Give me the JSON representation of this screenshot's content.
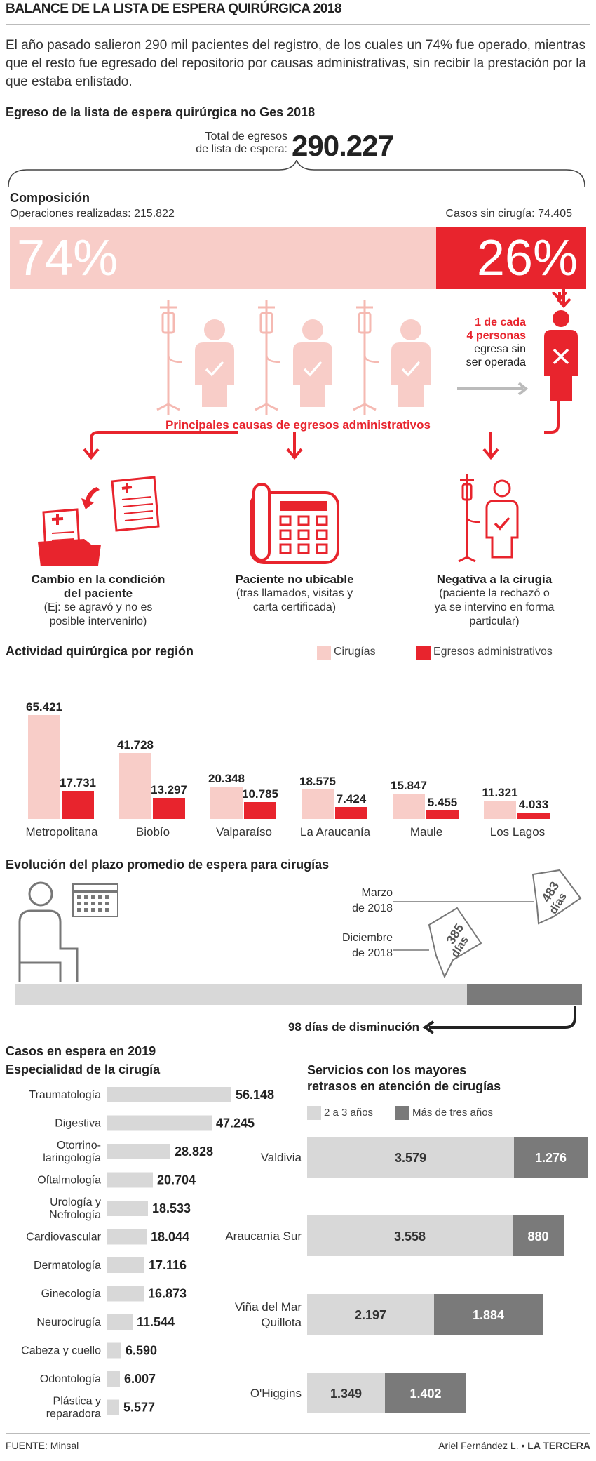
{
  "header": {
    "title": "BALANCE DE LA LISTA DE ESPERA QUIRÚRGICA 2018",
    "intro": "El año pasado salieron 290 mil pacientes del registro, de los cuales un 74% fue operado, mientras que el resto fue egresado del repositorio por causas administrativas, sin recibir la prestación por la que estaba enlistado."
  },
  "egreso": {
    "title": "Egreso de la lista de espera quirúrgica no Ges 2018",
    "total_label_1": "Total de egresos",
    "total_label_2": "de lista de espera:",
    "total_value": "290.227"
  },
  "composicion": {
    "title": "Composición",
    "ops_label": "Operaciones realizadas:",
    "ops_value": "215.822",
    "sin_label": "Casos sin cirugía:",
    "sin_value": "74.405",
    "pct_ops": "74%",
    "pct_sin": "26%",
    "fraction_ops": 0.74,
    "note_bold_1": "1 de cada",
    "note_bold_2": "4 personas",
    "note_1": "egresa sin",
    "note_2": "ser operada"
  },
  "causes": {
    "title": "Principales causas de egresos administrativos",
    "items": [
      {
        "title_1": "Cambio en la condición",
        "title_2": "del paciente",
        "sub_1": "(Ej: se agravó y no es",
        "sub_2": "posible intervenirlo)",
        "sub_3": ""
      },
      {
        "title_1": "Paciente no ubicable",
        "title_2": "",
        "sub_1": "(tras llamados, visitas y",
        "sub_2": "carta certificada)",
        "sub_3": ""
      },
      {
        "title_1": "Negativa a la cirugía",
        "title_2": "",
        "sub_1": "(paciente la rechazó o",
        "sub_2": "ya se intervino en forma",
        "sub_3": "particular)"
      }
    ]
  },
  "chart_data": [
    {
      "type": "bar",
      "title": "Actividad quirúrgica por región",
      "categories": [
        "Metropolitana",
        "Biobío",
        "Valparaíso",
        "La Araucanía",
        "Maule",
        "Los Lagos"
      ],
      "series": [
        {
          "name": "Cirugías",
          "values": [
            65421,
            41728,
            20348,
            18575,
            15847,
            11321
          ],
          "labels": [
            "65.421",
            "41.728",
            "20.348",
            "18.575",
            "15.847",
            "11.321"
          ]
        },
        {
          "name": "Egresos administrativos",
          "values": [
            17731,
            13297,
            10785,
            7424,
            5455,
            4033
          ],
          "labels": [
            "17.731",
            "13.297",
            "10.785",
            "7.424",
            "5.455",
            "4.033"
          ]
        }
      ],
      "colors": [
        "#f8cdc8",
        "#e8242d"
      ]
    },
    {
      "type": "bar",
      "title": "Especialidad de la cirugía",
      "categories": [
        "Traumatología",
        "Digestiva",
        "Otorrino-laringología",
        "Oftalmología",
        "Urología y Nefrología",
        "Cardiovascular",
        "Dermatología",
        "Ginecología",
        "Neurocirugía",
        "Cabeza y cuello",
        "Odontología",
        "Plástica y reparadora"
      ],
      "label_lines": [
        [
          "Traumatología"
        ],
        [
          "Digestiva"
        ],
        [
          "Otorrino-",
          "laringología"
        ],
        [
          "Oftalmología"
        ],
        [
          "Urología y",
          "Nefrología"
        ],
        [
          "Cardiovascular"
        ],
        [
          "Dermatología"
        ],
        [
          "Ginecología"
        ],
        [
          "Neurocirugía"
        ],
        [
          "Cabeza y cuello"
        ],
        [
          "Odontología"
        ],
        [
          "Plástica y",
          "reparadora"
        ]
      ],
      "values": [
        56148,
        47245,
        28828,
        20704,
        18533,
        18044,
        17116,
        16873,
        11544,
        6590,
        6007,
        5577
      ],
      "labels": [
        "56.148",
        "47.245",
        "28.828",
        "20.704",
        "18.533",
        "18.044",
        "17.116",
        "16.873",
        "11.544",
        "6.590",
        "6.007",
        "5.577"
      ]
    },
    {
      "type": "bar",
      "title": "Servicios con los mayores retrasos en atención de cirugías",
      "categories": [
        "Valdivia",
        "Araucanía Sur",
        "Viña del Mar Quillota",
        "O'Higgins"
      ],
      "label_lines": [
        [
          "Valdivia"
        ],
        [
          "Araucanía Sur"
        ],
        [
          "Viña del Mar",
          "Quillota"
        ],
        [
          "O'Higgins"
        ]
      ],
      "series": [
        {
          "name": "2 a 3 años",
          "values": [
            3579,
            3558,
            2197,
            1349
          ],
          "labels": [
            "3.579",
            "3.558",
            "2.197",
            "1.349"
          ]
        },
        {
          "name": "Más de tres años",
          "values": [
            1276,
            880,
            1884,
            1402
          ],
          "labels": [
            "1.276",
            "880",
            "1.884",
            "1.402"
          ]
        }
      ],
      "colors": [
        "#d8d8d8",
        "#7a7a7a"
      ]
    }
  ],
  "region": {
    "title": "Actividad quirúrgica por región",
    "legend_1": "Cirugías",
    "legend_2": "Egresos administrativos"
  },
  "evolucion": {
    "title": "Evolución del plazo promedio de espera para cirugías",
    "marzo_1": "Marzo",
    "marzo_2": "de 2018",
    "dic_1": "Diciembre",
    "dic_2": "de 2018",
    "dias_dic_num": "385",
    "dias_mar_num": "483",
    "dias_word": "días",
    "dias_dic": 385,
    "dias_mar": 483,
    "note": "98 días de disminución"
  },
  "casos": {
    "title": "Casos en espera en 2019",
    "esp_title": "Especialidad de la cirugía",
    "serv_title_1": "Servicios con los mayores",
    "serv_title_2": "retrasos en atención de cirugías",
    "legend_1": "2 a 3 años",
    "legend_2": "Más de tres años"
  },
  "footer": {
    "source": "FUENTE: Minsal",
    "credit": "Ariel Fernández L.",
    "brand": "LA TERCERA"
  }
}
